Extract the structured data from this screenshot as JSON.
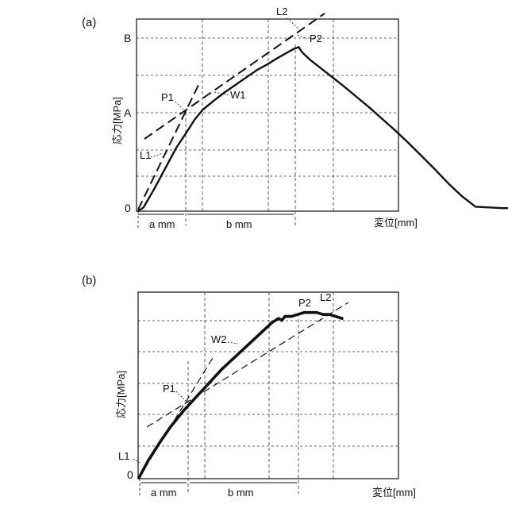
{
  "chart_data": [
    {
      "panel": "(a)",
      "type": "line",
      "ylabel": "応力[MPa]",
      "xlabel": "変位[mm]",
      "y_ticks": [
        "0",
        "A",
        "B"
      ],
      "x_spans": [
        "a mm",
        "b mm"
      ],
      "series": [
        {
          "name": "W1",
          "x": [
            0,
            0.2,
            0.6,
            1,
            1.4,
            1.8,
            2.1,
            2.4,
            2.8,
            3.2,
            3.6,
            4,
            4.4,
            4.8,
            5.2,
            5.6,
            5.8,
            5.9,
            5.95,
            5.97,
            6.0,
            6.1,
            6.4,
            7,
            7.6,
            8.2,
            8.6,
            9.0,
            9.5,
            10,
            10.5,
            11,
            11.5,
            12,
            12.5,
            13,
            13.5,
            14,
            14.5,
            15,
            15.5,
            16,
            16.5,
            17
          ],
          "y": [
            0,
            0.05,
            0.3,
            0.57,
            0.84,
            1.06,
            1.23,
            1.36,
            1.48,
            1.59,
            1.69,
            1.79,
            1.89,
            1.97,
            2.06,
            2.14,
            2.18,
            2.19,
            2.2,
            2.19,
            2.17,
            2.12,
            2.02,
            1.85,
            1.68,
            1.5,
            1.38,
            1.25,
            1.09,
            0.92,
            0.74,
            0.56,
            0.37,
            0.2,
            0.06,
            0.05,
            0.04,
            0.04,
            0.03,
            0.03,
            0.03,
            0.02,
            0.02,
            0.02
          ]
        }
      ],
      "annotations": [
        "P1",
        "P2",
        "L1",
        "L2",
        "W1"
      ]
    },
    {
      "panel": "(b)",
      "type": "line",
      "ylabel": "応力[MPa]",
      "xlabel": "変位[mm]",
      "y_ticks": [
        "0"
      ],
      "x_spans": [
        "a mm",
        "b mm"
      ],
      "series": [
        {
          "name": "W2",
          "x": [
            0,
            0.3,
            0.7,
            1,
            1.4,
            1.8,
            2.2,
            2.6,
            3.0,
            3.4,
            3.8,
            4.2,
            4.4,
            4.5,
            4.6,
            4.8,
            5.0,
            5.2,
            5.4,
            5.6,
            5.8,
            6.0,
            6.2,
            6.4
          ],
          "y": [
            0,
            0.09,
            0.19,
            0.26,
            0.34,
            0.41,
            0.48,
            0.55,
            0.61,
            0.67,
            0.73,
            0.79,
            0.81,
            0.8,
            0.82,
            0.82,
            0.83,
            0.84,
            0.84,
            0.84,
            0.83,
            0.83,
            0.82,
            0.81
          ]
        }
      ],
      "annotations": [
        "P1",
        "P2",
        "L1",
        "L2",
        "W2"
      ]
    }
  ]
}
